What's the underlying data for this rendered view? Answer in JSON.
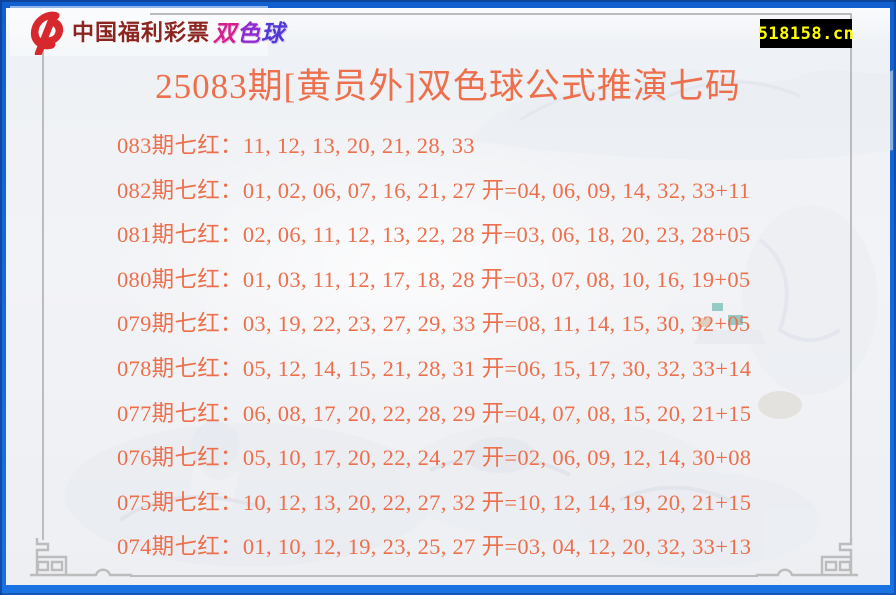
{
  "theme": {
    "accent": "#ed6f4c",
    "badge_bg": "#000000",
    "badge_fg": "#ffff00",
    "frame_blue": "#1468d8",
    "frame_line_gray": "#bcbcbc",
    "brand_red": "#8c2420",
    "logo_red": "#d7282e",
    "ink_teal": "#4aa9a0"
  },
  "header": {
    "logo_icon": "china-welfare-lottery-logo",
    "brand": "中国福利彩票",
    "product": "双色球",
    "product_colors": [
      "#d6208f",
      "#8f2bd0",
      "#5338d8"
    ],
    "site_badge": "518158.cn"
  },
  "title": {
    "text": "25083期[黄员外]双色球公式推演七码"
  },
  "list": {
    "colon": "：",
    "open_prefix": "开=",
    "rows": [
      {
        "label": "083期七红",
        "picks": "11, 12, 13, 20, 21, 28, 33",
        "open": ""
      },
      {
        "label": "082期七红",
        "picks": "01, 02, 06, 07, 16, 21, 27",
        "open": "04, 06, 09, 14, 32, 33+11"
      },
      {
        "label": "081期七红",
        "picks": "02, 06, 11, 12, 13, 22, 28",
        "open": "03, 06, 18, 20, 23, 28+05"
      },
      {
        "label": "080期七红",
        "picks": "01, 03, 11, 12, 17, 18, 28",
        "open": "03, 07, 08, 10, 16, 19+05"
      },
      {
        "label": "079期七红",
        "picks": "03, 19, 22, 23, 27, 29, 33",
        "open": "08, 11, 14, 15, 30, 32+05"
      },
      {
        "label": "078期七红",
        "picks": "05, 12, 14, 15, 21, 28, 31",
        "open": "06, 15, 17, 30, 32, 33+14"
      },
      {
        "label": "077期七红",
        "picks": "06, 08, 17, 20, 22, 28, 29",
        "open": "04, 07, 08, 15, 20, 21+15"
      },
      {
        "label": "076期七红",
        "picks": "05, 10, 17, 20, 22, 24, 27",
        "open": "02, 06, 09, 12, 14, 30+08"
      },
      {
        "label": "075期七红",
        "picks": "10, 12, 13, 20, 22, 27, 32",
        "open": "10, 12, 14, 19, 20, 21+15"
      },
      {
        "label": "074期七红",
        "picks": "01, 10, 12, 19, 23, 25, 27",
        "open": "03, 04, 12, 20, 32, 33+13"
      }
    ]
  }
}
